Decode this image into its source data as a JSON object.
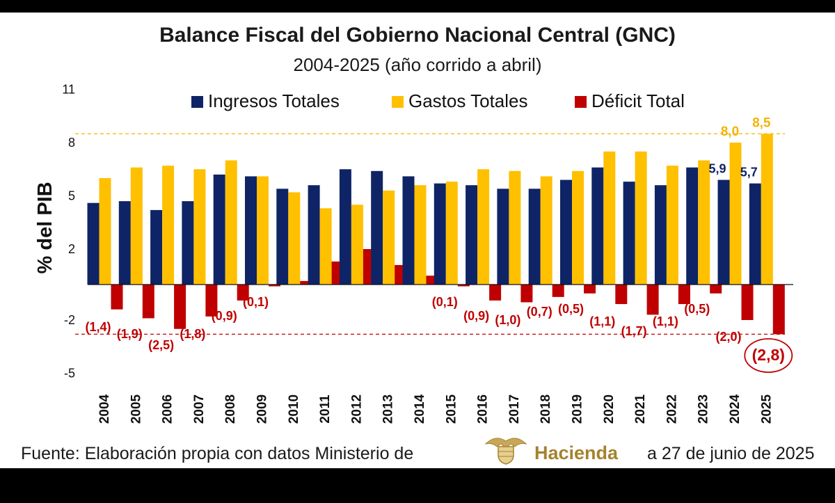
{
  "header": {
    "title": "Balance Fiscal del Gobierno Nacional Central (GNC)",
    "subtitle": "2004-2025 (año corrido a abril)"
  },
  "footer": {
    "source_prefix": "Fuente: Elaboración propia con datos Ministerio de",
    "logo_text": "Hacienda",
    "source_suffix": "a 27 de junio de 2025"
  },
  "colors": {
    "ingresos": "#0f2466",
    "gastos": "#ffc000",
    "deficit": "#c00000",
    "gastos_label": "#f5b400",
    "logo": "#a4832e"
  },
  "icons": {
    "logo": "coat-of-arms-icon"
  },
  "chart_data": {
    "type": "bar",
    "ylabel": "% del PIB",
    "yticks": [
      11,
      8,
      5,
      2,
      -2,
      -5
    ],
    "ylim": [
      -5,
      11
    ],
    "grid": false,
    "legend": "top",
    "categories": [
      "2004",
      "2005",
      "2006",
      "2007",
      "2008",
      "2009",
      "2010",
      "2011",
      "2012",
      "2013",
      "2014",
      "2015",
      "2016",
      "2017",
      "2018",
      "2019",
      "2020",
      "2021",
      "2022",
      "2023",
      "2024",
      "2025"
    ],
    "series": [
      {
        "name": "Ingresos Totales",
        "values": [
          4.6,
          4.7,
          4.2,
          4.7,
          6.2,
          6.1,
          5.4,
          5.6,
          6.5,
          6.4,
          6.1,
          5.7,
          5.6,
          5.4,
          5.4,
          5.9,
          6.6,
          5.8,
          5.6,
          6.6,
          5.9,
          5.7
        ]
      },
      {
        "name": "Gastos Totales",
        "values": [
          6.0,
          6.6,
          6.7,
          6.5,
          7.0,
          6.1,
          5.2,
          4.3,
          4.5,
          5.3,
          5.6,
          5.8,
          6.5,
          6.4,
          6.1,
          6.4,
          7.5,
          7.5,
          6.7,
          7.0,
          8.0,
          8.5
        ]
      },
      {
        "name": "Déficit Total",
        "values": [
          -1.4,
          -1.9,
          -2.5,
          -1.8,
          -0.9,
          -0.1,
          0.2,
          1.3,
          2.0,
          1.1,
          0.5,
          -0.1,
          -0.9,
          -1.0,
          -0.7,
          -0.5,
          -1.1,
          -1.7,
          -1.1,
          -0.5,
          -2.0,
          -2.8
        ]
      }
    ],
    "deficit_labels": [
      "(1,4)",
      "(1,9)",
      "(2,5)",
      "(1,8)",
      "(0,9)",
      "(0,1)",
      "",
      "",
      "",
      "",
      "",
      "(0,1)",
      "(0,9)",
      "(1,0)",
      "(0,7)",
      "(0,5)",
      "(1,1)",
      "(1,7)",
      "(1,1)",
      "(0,5)",
      "(2,0)",
      "(2,8)"
    ],
    "ingresos_labels": {
      "2024": "5,9",
      "2025": "5,7"
    },
    "gastos_labels": {
      "2024": "8,0",
      "2025": "8,5"
    },
    "reference_lines": [
      {
        "value": 8.5,
        "color": "#f5b400",
        "style": "dashed"
      },
      {
        "value": -2.8,
        "color": "#c00000",
        "style": "dashed"
      }
    ]
  }
}
